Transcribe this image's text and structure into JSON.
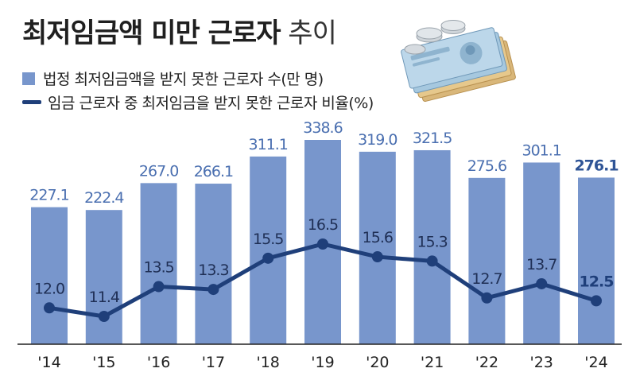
{
  "title": {
    "bold": "최저임금액 미만 근로자",
    "light": "추이"
  },
  "legend": {
    "bar_label": "법정 최저임금액을 받지 못한 근로자 수(만 명)",
    "line_label": "임금 근로자 중 최저임금을 받지 못한 근로자 비율(%)"
  },
  "colors": {
    "bar": "#7896cc",
    "line": "#1f3f7a",
    "axis": "#222222"
  },
  "illustration": {
    "icon": "money-stack-icon"
  },
  "chart_data": {
    "type": "bar",
    "categories": [
      "'14",
      "'15",
      "'16",
      "'17",
      "'18",
      "'19",
      "'20",
      "'21",
      "'22",
      "'23",
      "'24"
    ],
    "series": [
      {
        "type": "bar",
        "values": [
          227.1,
          222.4,
          267.0,
          266.1,
          311.1,
          338.6,
          319.0,
          321.5,
          275.6,
          301.1,
          276.1
        ]
      },
      {
        "type": "line",
        "values": [
          12.0,
          11.4,
          13.5,
          13.3,
          15.5,
          16.5,
          15.6,
          15.3,
          12.7,
          13.7,
          12.5
        ]
      }
    ],
    "bar_labels": [
      "227.1",
      "222.4",
      "267.0",
      "266.1",
      "311.1",
      "338.6",
      "319.0",
      "321.5",
      "275.6",
      "301.1",
      "276.1"
    ],
    "line_labels": [
      "12.0",
      "11.4",
      "13.5",
      "13.3",
      "15.5",
      "16.5",
      "15.6",
      "15.3",
      "12.7",
      "13.7",
      "12.5"
    ],
    "highlight_last": true,
    "grid": false,
    "legend_position": "top-left"
  }
}
